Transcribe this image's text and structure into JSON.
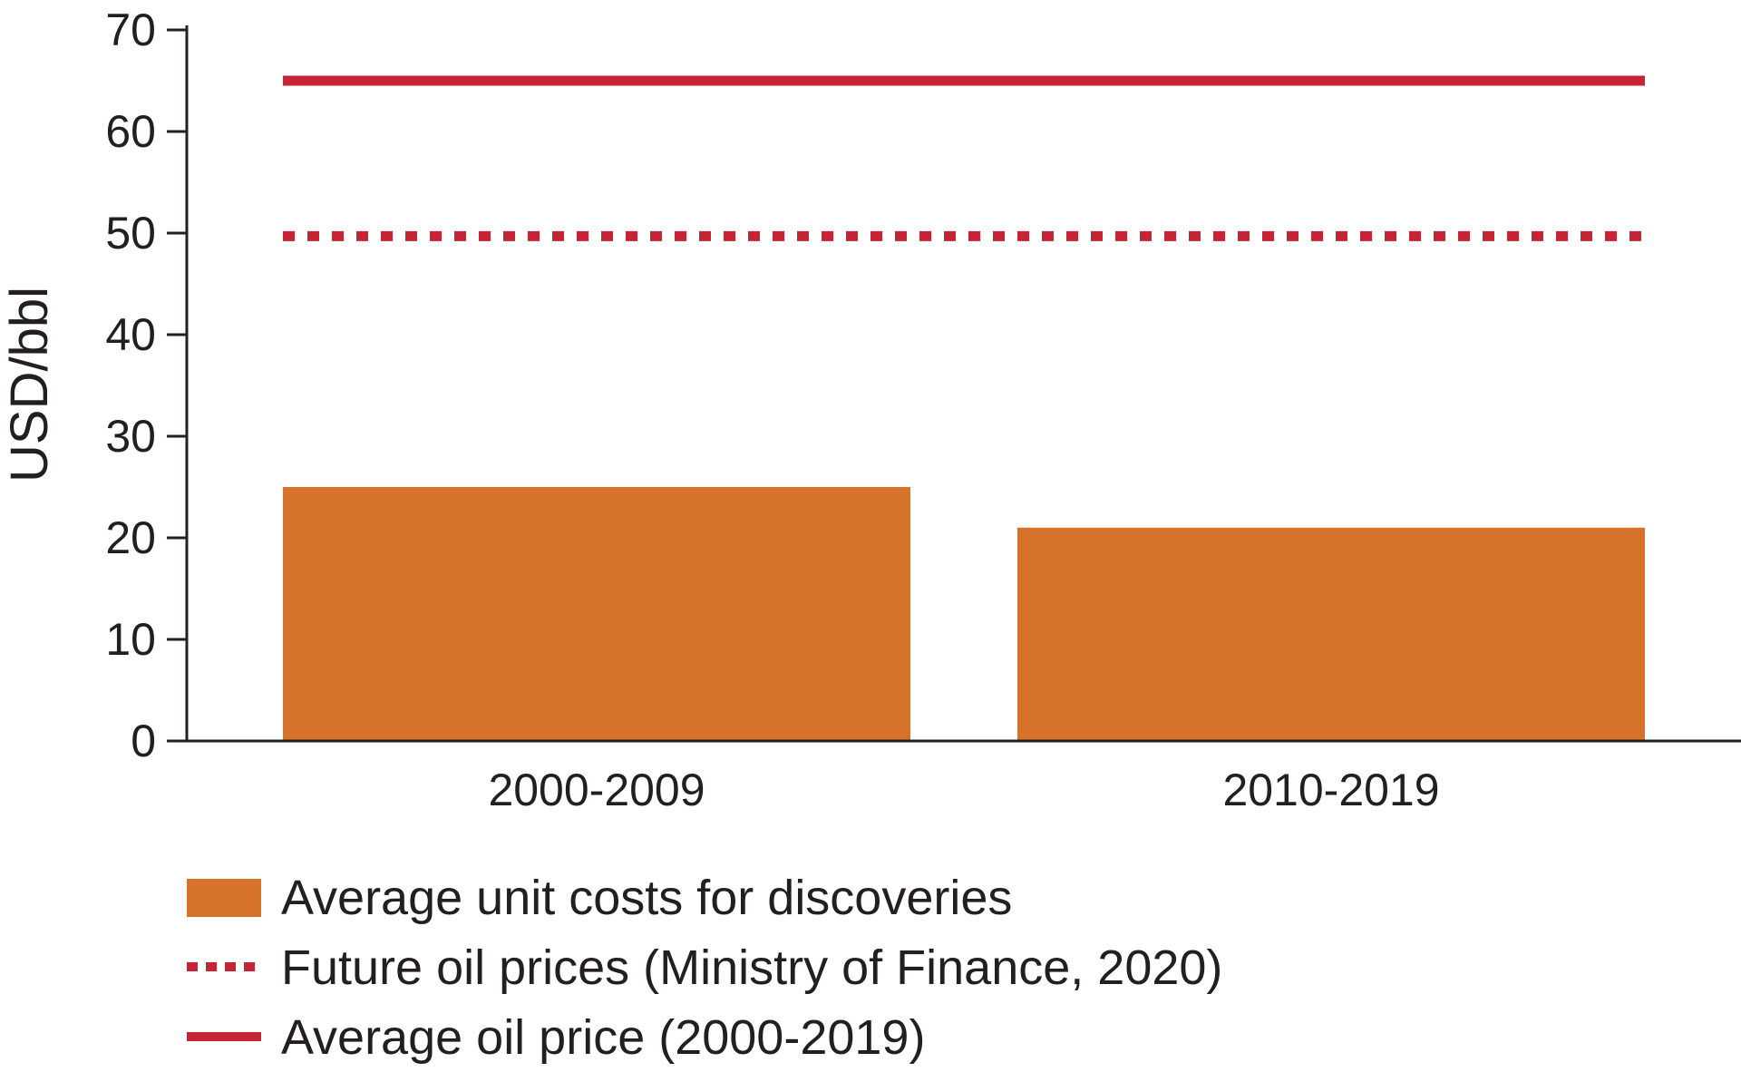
{
  "chart_data": {
    "type": "bar",
    "ylabel": "USD/bbl",
    "ylim": [
      0,
      70
    ],
    "yticks": [
      "0",
      "10",
      "20",
      "30",
      "40",
      "50",
      "60",
      "70"
    ],
    "categories": [
      "2000-2009",
      "2010-2019"
    ],
    "series": [
      {
        "name": "Average unit costs for discoveries",
        "type": "bar",
        "values": [
          25,
          21
        ],
        "color": "#d6722a"
      }
    ],
    "reference_lines": [
      {
        "name": "Future oil prices (Ministry of Finance, 2020)",
        "value": 49.7,
        "style": "dotted",
        "color": "#c62334"
      },
      {
        "name": "Average oil price (2000-2019)",
        "value": 65,
        "style": "solid",
        "color": "#c62334"
      }
    ],
    "legend_placement": "bottom-left",
    "grid": false
  }
}
